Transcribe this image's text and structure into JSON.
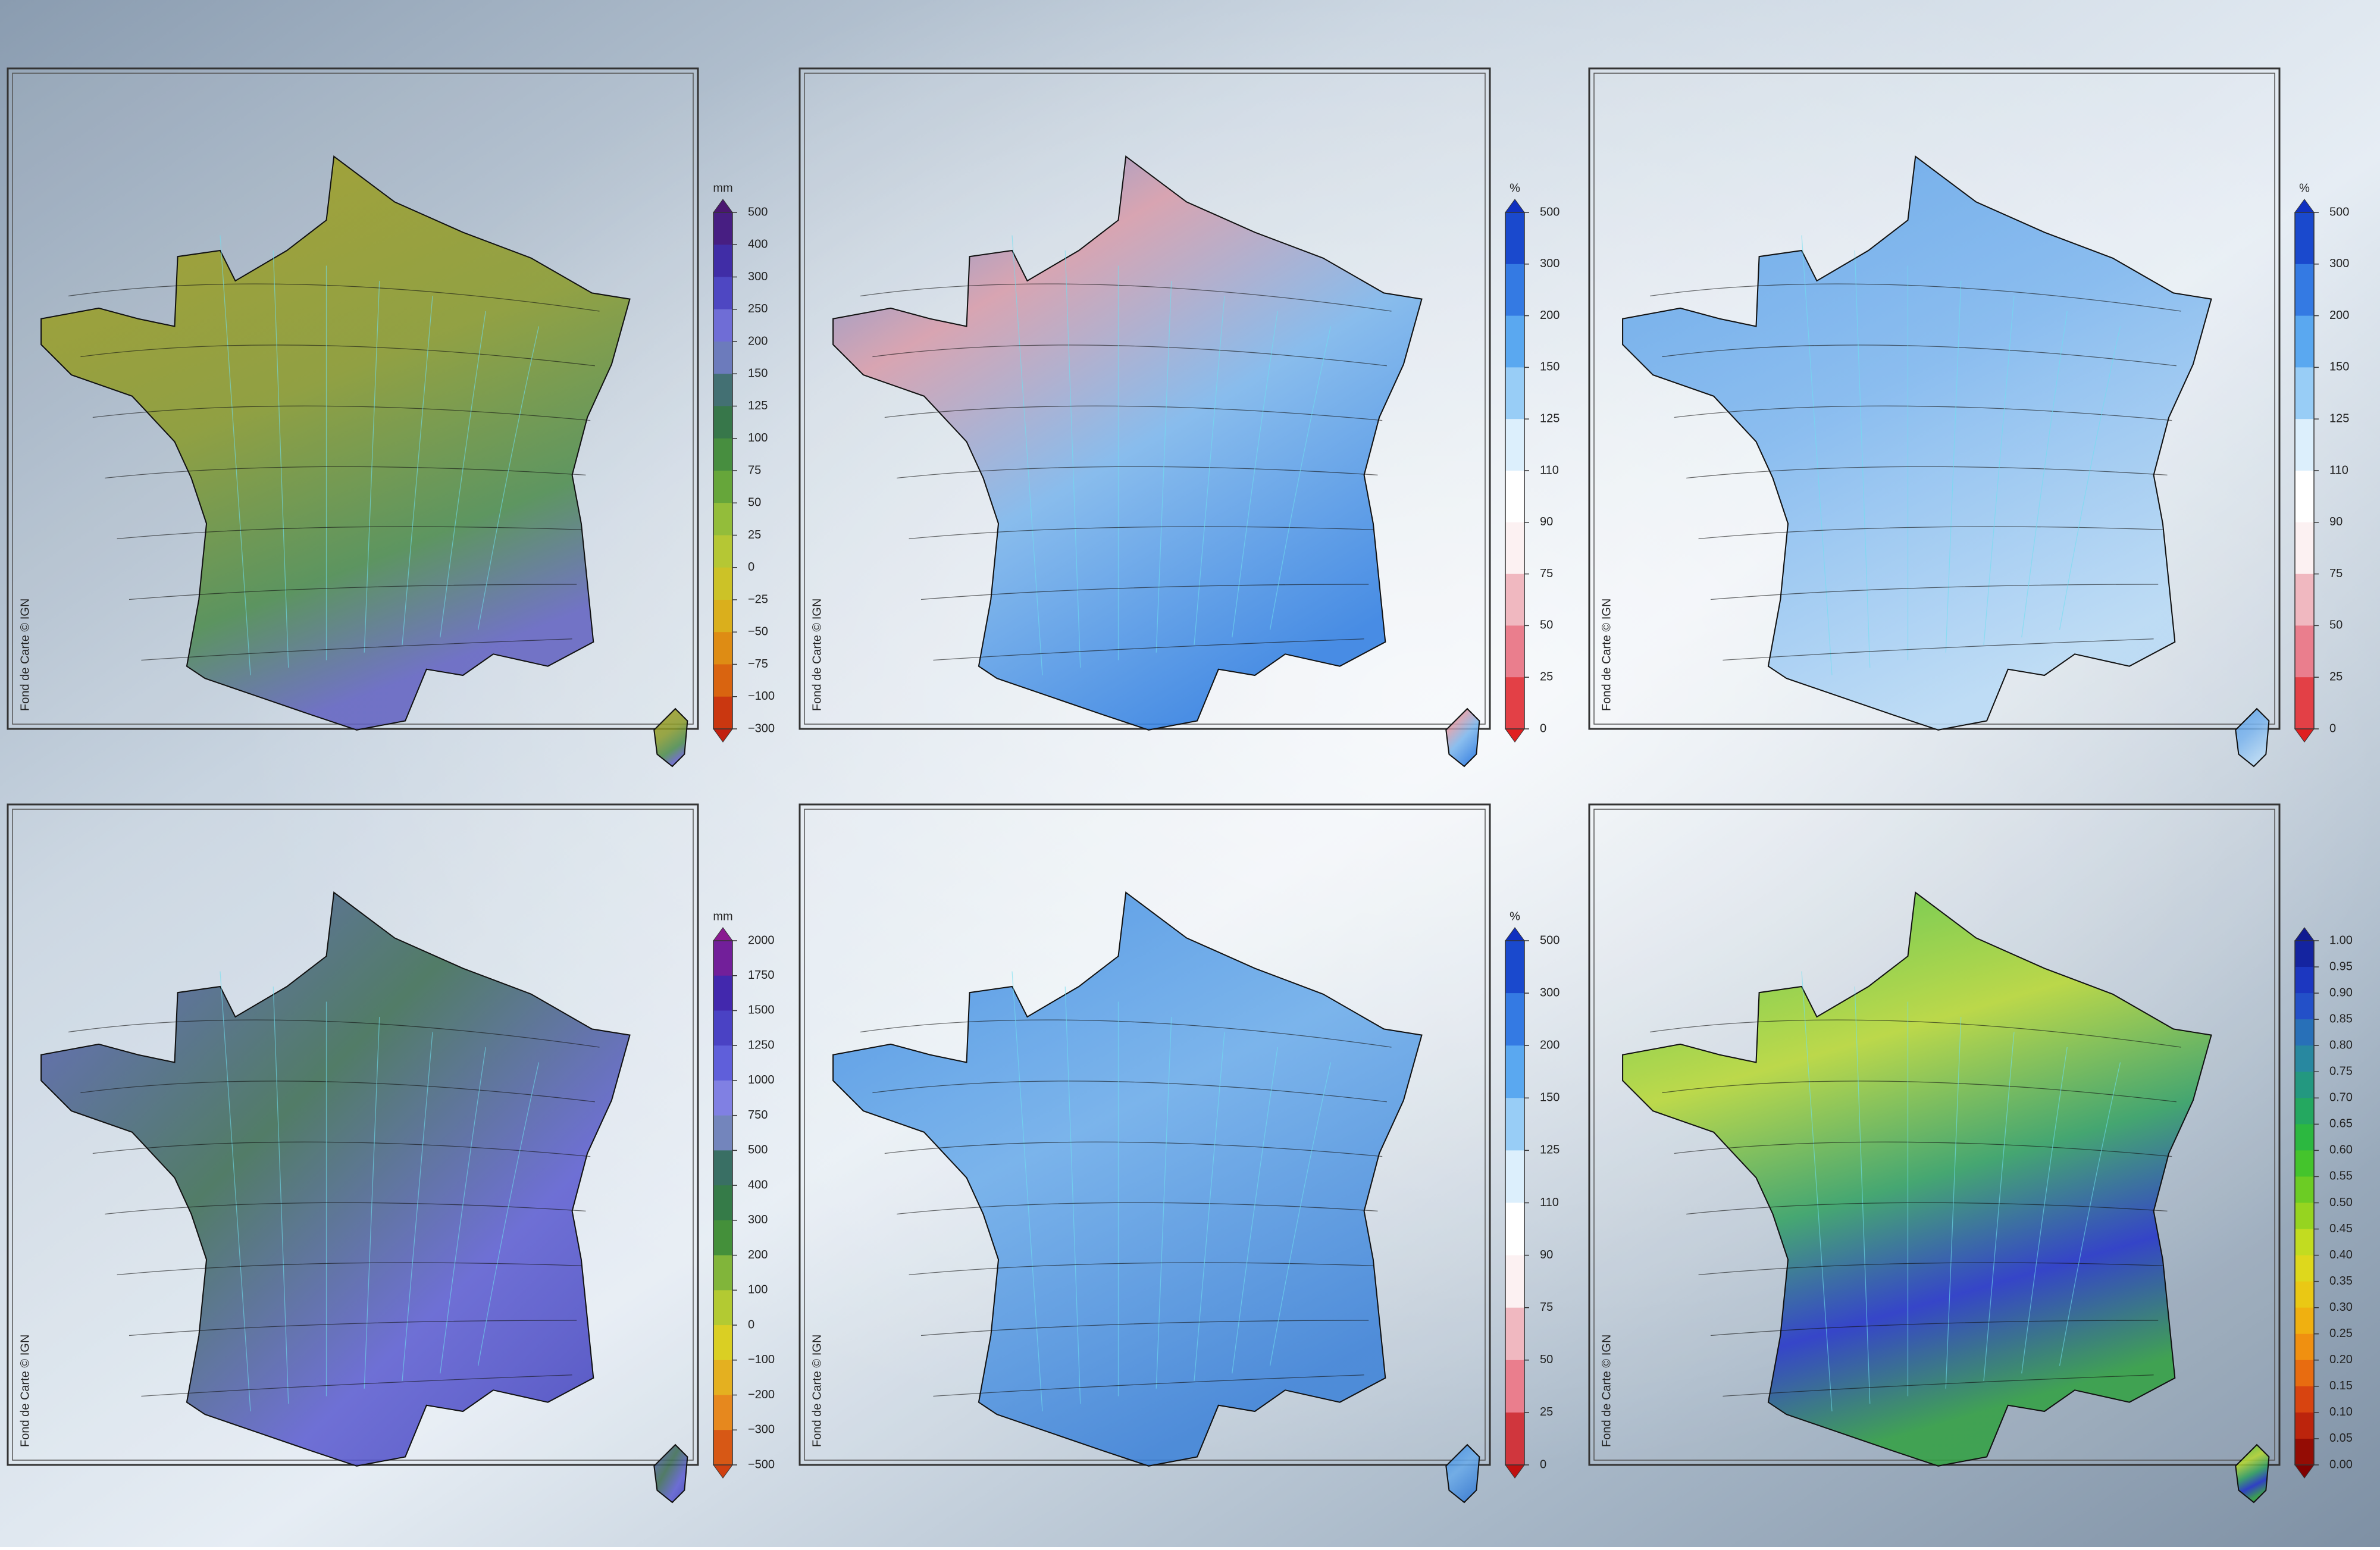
{
  "panels": [
    {
      "credit": "Fond de Carte © IGN",
      "colorbar": {
        "unit": "mm",
        "ticks": [
          "500",
          "400",
          "300",
          "250",
          "200",
          "150",
          "125",
          "100",
          "75",
          "50",
          "25",
          "0",
          "−25",
          "−50",
          "−75",
          "−100",
          "−300"
        ],
        "palette": [
          "#4a1670",
          "#3d34b8",
          "#8080e0",
          "#2f6b4f",
          "#4f9a3a",
          "#a9c93a",
          "#d8c020",
          "#e07a10",
          "#c22010"
        ]
      }
    },
    {
      "credit": "Fond de Carte © IGN",
      "colorbar": {
        "unit": "%",
        "ticks": [
          "500",
          "300",
          "200",
          "150",
          "125",
          "110",
          "90",
          "75",
          "50",
          "25",
          "0"
        ],
        "palette": [
          "#1030c0",
          "#2a6ee0",
          "#5aa8f0",
          "#a8d6f8",
          "#ffffff",
          "#ffffff",
          "#f0b8c0",
          "#e87080",
          "#e02020"
        ]
      }
    },
    {
      "credit": "Fond de Carte © IGN",
      "colorbar": {
        "unit": "%",
        "ticks": [
          "500",
          "300",
          "200",
          "150",
          "125",
          "110",
          "90",
          "75",
          "50",
          "25",
          "0"
        ],
        "palette": [
          "#1030c0",
          "#2a6ee0",
          "#5aa8f0",
          "#a8d6f8",
          "#ffffff",
          "#ffffff",
          "#f0b8c0",
          "#e87080",
          "#e02020"
        ]
      }
    },
    {
      "credit": "Fond de Carte © IGN",
      "colorbar": {
        "unit": "mm",
        "ticks": [
          "2000",
          "1750",
          "1500",
          "1250",
          "1000",
          "750",
          "500",
          "400",
          "300",
          "200",
          "100",
          "0",
          "−100",
          "−200",
          "−300",
          "−500"
        ],
        "palette": [
          "#8a1a90",
          "#3a2ab0",
          "#5a5ad8",
          "#9090e8",
          "#2f6b55",
          "#3a8a3a",
          "#a0c83a",
          "#e0d020",
          "#e89020",
          "#d04010"
        ]
      }
    },
    {
      "credit": "Fond de Carte © IGN",
      "colorbar": {
        "unit": "%",
        "ticks": [
          "500",
          "300",
          "200",
          "150",
          "125",
          "110",
          "90",
          "75",
          "50",
          "25",
          "0"
        ],
        "palette": [
          "#1030c0",
          "#2a6ee0",
          "#5aa8f0",
          "#a8d6f8",
          "#ffffff",
          "#ffffff",
          "#f0b8c0",
          "#e87080",
          "#c01010"
        ]
      }
    },
    {
      "credit": "Fond de Carte © IGN",
      "colorbar": {
        "unit": "",
        "ticks": [
          "1.00",
          "0.95",
          "0.90",
          "0.85",
          "0.80",
          "0.75",
          "0.70",
          "0.65",
          "0.60",
          "0.55",
          "0.50",
          "0.45",
          "0.40",
          "0.35",
          "0.30",
          "0.25",
          "0.20",
          "0.15",
          "0.10",
          "0.05",
          "0.00"
        ],
        "palette": [
          "#101a90",
          "#2040d0",
          "#2a80b0",
          "#20a070",
          "#30c030",
          "#80d020",
          "#d8e020",
          "#f0c010",
          "#f08010",
          "#d03010",
          "#800000"
        ]
      }
    }
  ]
}
